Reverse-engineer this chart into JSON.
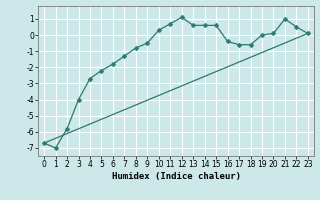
{
  "xlabel": "Humidex (Indice chaleur)",
  "ylabel": "",
  "bg_color": "#cce8e8",
  "line_color": "#2d7a6e",
  "grid_color": "#ffffff",
  "xlim": [
    -0.5,
    23.5
  ],
  "ylim": [
    -7.5,
    1.8
  ],
  "yticks": [
    1,
    0,
    -1,
    -2,
    -3,
    -4,
    -5,
    -6,
    -7
  ],
  "xticks": [
    0,
    1,
    2,
    3,
    4,
    5,
    6,
    7,
    8,
    9,
    10,
    11,
    12,
    13,
    14,
    15,
    16,
    17,
    18,
    19,
    20,
    21,
    22,
    23
  ],
  "series1_x": [
    0,
    1,
    2,
    3,
    4,
    5,
    6,
    7,
    8,
    9,
    10,
    11,
    12,
    13,
    14,
    15,
    16,
    17,
    18,
    19,
    20,
    21,
    22,
    23
  ],
  "series1_y": [
    -6.7,
    -7.0,
    -5.8,
    -4.0,
    -2.7,
    -2.2,
    -1.8,
    -1.3,
    -0.8,
    -0.5,
    0.3,
    0.7,
    1.1,
    0.6,
    0.6,
    0.6,
    -0.4,
    -0.6,
    -0.6,
    0.0,
    0.1,
    1.0,
    0.5,
    0.1
  ],
  "series2_x": [
    0,
    23
  ],
  "series2_y": [
    -6.7,
    0.1
  ],
  "tick_fontsize": 5.5,
  "xlabel_fontsize": 6.5,
  "marker_size": 2.5
}
